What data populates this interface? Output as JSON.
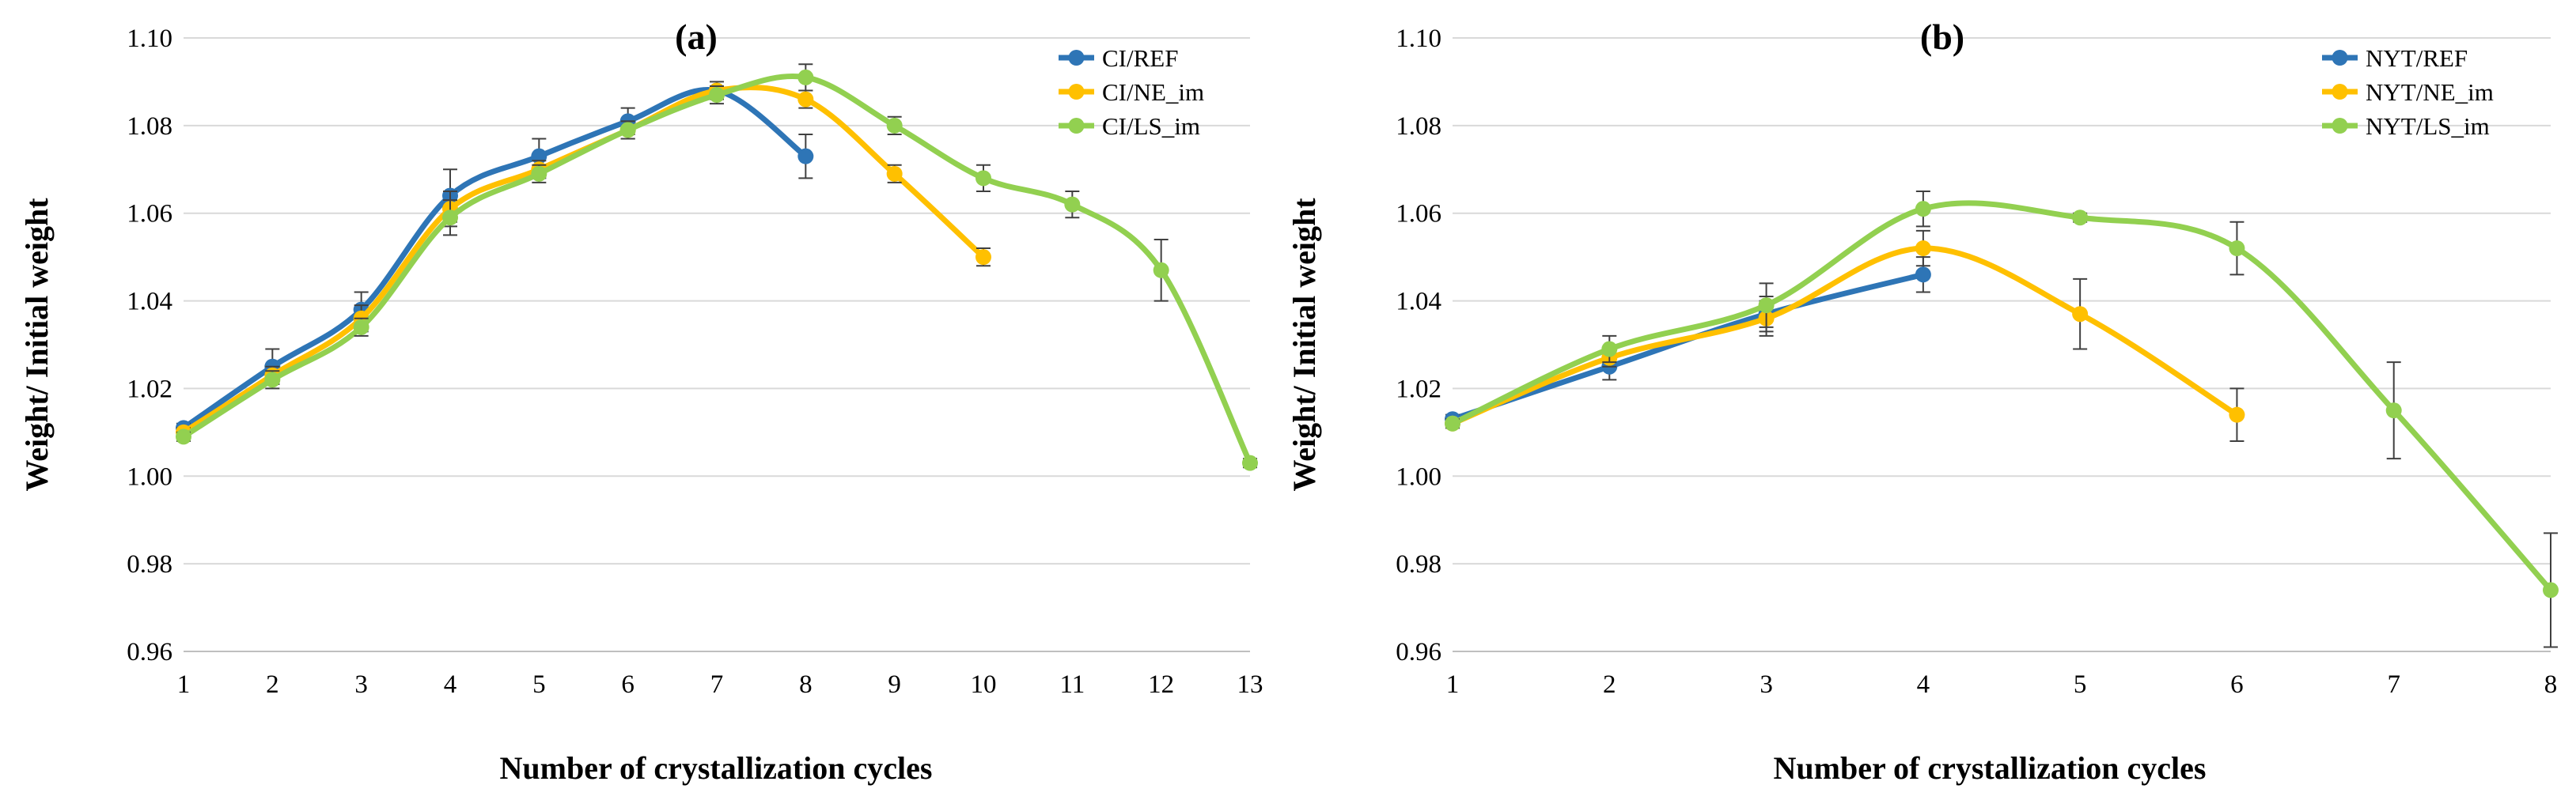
{
  "chart_data": [
    {
      "type": "line",
      "title": "(a)",
      "xlabel": "Number of crystallization cycles",
      "ylabel": "Weight/ Initial weight",
      "x": [
        1,
        2,
        3,
        4,
        5,
        6,
        7,
        8,
        9,
        10,
        11,
        12,
        13
      ],
      "xlim": [
        1,
        13
      ],
      "ylim": [
        0.96,
        1.1
      ],
      "yticks": [
        "0.96",
        "0.98",
        "1.00",
        "1.02",
        "1.04",
        "1.06",
        "1.08",
        "1.10"
      ],
      "grid": true,
      "legend_position": "top-right",
      "series": [
        {
          "name": "CI/REF",
          "color": "#2e75b6",
          "x": [
            1,
            2,
            3,
            4,
            5,
            6,
            7,
            8
          ],
          "y": [
            1.011,
            1.025,
            1.038,
            1.064,
            1.073,
            1.081,
            1.088,
            1.073
          ],
          "err": [
            0.001,
            0.004,
            0.004,
            0.006,
            0.004,
            0.003,
            0.002,
            0.005
          ]
        },
        {
          "name": "CI/NE_im",
          "color": "#ffc000",
          "x": [
            1,
            2,
            3,
            4,
            5,
            6,
            7,
            8,
            9,
            10
          ],
          "y": [
            1.01,
            1.023,
            1.036,
            1.061,
            1.07,
            1.079,
            1.088,
            1.086,
            1.069,
            1.05
          ],
          "err": [
            0.001,
            0.002,
            0.003,
            0.004,
            0.002,
            0.002,
            0.001,
            0.002,
            0.002,
            0.002
          ]
        },
        {
          "name": "CI/LS_im",
          "color": "#92d050",
          "x": [
            1,
            2,
            3,
            4,
            5,
            6,
            7,
            8,
            9,
            10,
            11,
            12,
            13
          ],
          "y": [
            1.009,
            1.022,
            1.034,
            1.059,
            1.069,
            1.079,
            1.087,
            1.091,
            1.08,
            1.068,
            1.062,
            1.047,
            1.003
          ],
          "err": [
            0.001,
            0.002,
            0.002,
            0.004,
            0.002,
            0.002,
            0.002,
            0.003,
            0.002,
            0.003,
            0.003,
            0.007,
            0.001
          ]
        }
      ]
    },
    {
      "type": "line",
      "title": "(b)",
      "xlabel": "Number of crystallization cycles",
      "ylabel": "Weight/ Initial weight",
      "x": [
        1,
        2,
        3,
        4,
        5,
        6,
        7,
        8
      ],
      "xlim": [
        1,
        8
      ],
      "ylim": [
        0.96,
        1.1
      ],
      "yticks": [
        "0.96",
        "0.98",
        "1.00",
        "1.02",
        "1.04",
        "1.06",
        "1.08",
        "1.10"
      ],
      "grid": true,
      "legend_position": "top-right",
      "series": [
        {
          "name": "NYT/REF",
          "color": "#2e75b6",
          "x": [
            1,
            2,
            3,
            4
          ],
          "y": [
            1.013,
            1.025,
            1.037,
            1.046
          ],
          "err": [
            0.001,
            0.003,
            0.004,
            0.004
          ]
        },
        {
          "name": "NYT/NE_im",
          "color": "#ffc000",
          "x": [
            1,
            2,
            3,
            4,
            5,
            6
          ],
          "y": [
            1.012,
            1.027,
            1.036,
            1.052,
            1.037,
            1.014
          ],
          "err": [
            0.001,
            0.002,
            0.004,
            0.004,
            0.008,
            0.006
          ]
        },
        {
          "name": "NYT/LS_im",
          "color": "#92d050",
          "x": [
            1,
            2,
            3,
            4,
            5,
            6,
            7,
            8
          ],
          "y": [
            1.012,
            1.029,
            1.039,
            1.061,
            1.059,
            1.052,
            1.015,
            0.974
          ],
          "err": [
            0.001,
            0.003,
            0.005,
            0.004,
            0.001,
            0.006,
            0.011,
            0.013
          ]
        }
      ]
    }
  ]
}
